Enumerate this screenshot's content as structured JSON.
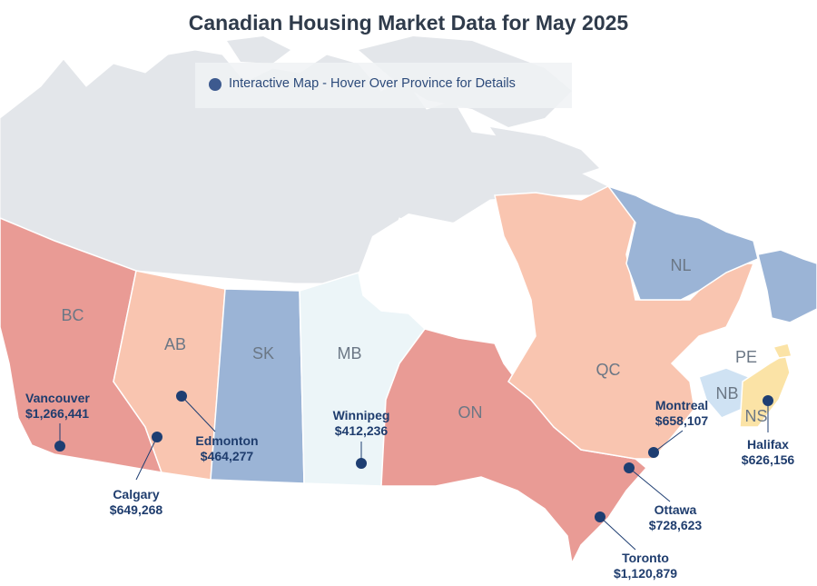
{
  "title": "Canadian Housing Market Data for May 2025",
  "legend": {
    "text": "Interactive Map - Hover Over Province for Details",
    "dot_color": "#3d5a8f"
  },
  "colors": {
    "north": "#e3e6ea",
    "high": "#e99b95",
    "mid": "#f9c5b0",
    "low": "#9bb4d6",
    "lowest": "#ecf5f8",
    "nb": "#cfe2f3",
    "ns": "#fbe3a6",
    "marker": "#1e3e72"
  },
  "provinces": [
    {
      "code": "BC",
      "tier": "high"
    },
    {
      "code": "AB",
      "tier": "mid"
    },
    {
      "code": "SK",
      "tier": "low"
    },
    {
      "code": "MB",
      "tier": "lowest"
    },
    {
      "code": "ON",
      "tier": "high"
    },
    {
      "code": "QC",
      "tier": "mid"
    },
    {
      "code": "NL",
      "tier": "low"
    },
    {
      "code": "NB",
      "tier": "nb"
    },
    {
      "code": "NS",
      "tier": "ns"
    },
    {
      "code": "PE",
      "tier": "ns"
    }
  ],
  "cities": [
    {
      "name": "Vancouver",
      "price": "$1,266,441"
    },
    {
      "name": "Calgary",
      "price": "$649,268"
    },
    {
      "name": "Edmonton",
      "price": "$464,277"
    },
    {
      "name": "Winnipeg",
      "price": "$412,236"
    },
    {
      "name": "Toronto",
      "price": "$1,120,879"
    },
    {
      "name": "Ottawa",
      "price": "$728,623"
    },
    {
      "name": "Montreal",
      "price": "$658,107"
    },
    {
      "name": "Halifax",
      "price": "$626,156"
    }
  ]
}
